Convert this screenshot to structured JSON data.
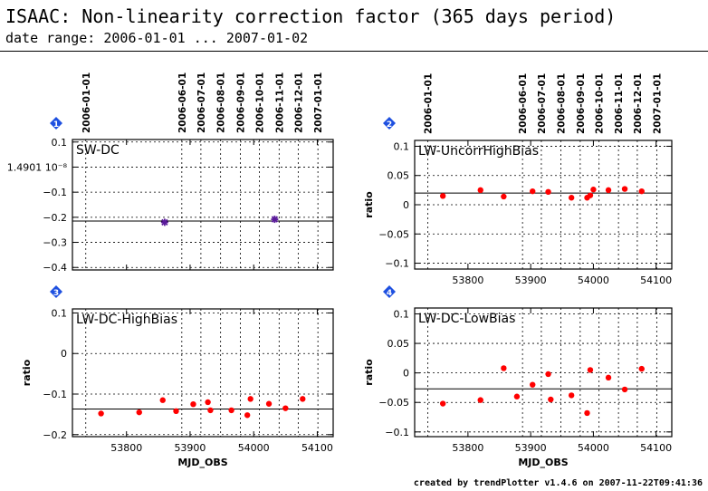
{
  "title": "ISAAC: Non-linearity correction factor (365 days period)",
  "subtitle": "date range: 2006-01-01 ... 2007-01-02",
  "footer": "created by trendPlotter v1.4.6 on 2007-11-22T09:41:36",
  "colors": {
    "points": "#ff0000",
    "star": "#5a1a9a",
    "badge": "#1e50e0",
    "line": "#000000"
  },
  "top_date_ticks": [
    {
      "label": "2006-01-01",
      "mjd": 53736
    },
    {
      "label": "2006-06-01",
      "mjd": 53887
    },
    {
      "label": "2006-07-01",
      "mjd": 53917
    },
    {
      "label": "2006-08-01",
      "mjd": 53948
    },
    {
      "label": "2006-09-01",
      "mjd": 53979
    },
    {
      "label": "2006-10-01",
      "mjd": 54009
    },
    {
      "label": "2006-11-01",
      "mjd": 54040
    },
    {
      "label": "2006-12-01",
      "mjd": 54070
    },
    {
      "label": "2007-01-01",
      "mjd": 54101
    }
  ],
  "chart_data": [
    {
      "type": "scatter",
      "panel": "1",
      "label": "SW-DC",
      "marker": "star",
      "xlabel": "",
      "ylabel": "",
      "xlim": [
        53715,
        54125
      ],
      "ylim": [
        -0.41,
        0.11
      ],
      "xticks": [
        53800,
        53900,
        54000,
        54100
      ],
      "xtick_labels": [],
      "yticks": [
        0.1,
        0,
        -0.1,
        -0.2,
        -0.3,
        -0.4
      ],
      "ytick_labels": [
        "0.1",
        "1.4901 10⁻⁸",
        "−0.1",
        "−0.2",
        "−0.3",
        "−0.4"
      ],
      "hline": -0.215,
      "points": [
        [
          53860,
          -0.22
        ],
        [
          54033,
          -0.208
        ]
      ]
    },
    {
      "type": "scatter",
      "panel": "2",
      "label": "LW-UncorrHighBias",
      "marker": "dot",
      "xlabel": "",
      "ylabel": "ratio",
      "xlim": [
        53715,
        54125
      ],
      "ylim": [
        -0.11,
        0.11
      ],
      "xticks": [
        53800,
        53900,
        54000,
        54100
      ],
      "xtick_labels": [
        "53800",
        "53900",
        "54000",
        "54100"
      ],
      "yticks": [
        0.1,
        0.05,
        0,
        -0.05,
        -0.1
      ],
      "ytick_labels": [
        "0.1",
        "0.05",
        "0",
        "−0.05",
        "−0.1"
      ],
      "hline": 0.02,
      "points": [
        [
          53760,
          0.015
        ],
        [
          53820,
          0.025
        ],
        [
          53857,
          0.014
        ],
        [
          53903,
          0.023
        ],
        [
          53928,
          0.022
        ],
        [
          53965,
          0.012
        ],
        [
          53990,
          0.012
        ],
        [
          53995,
          0.016
        ],
        [
          54000,
          0.026
        ],
        [
          54024,
          0.025
        ],
        [
          54050,
          0.027
        ],
        [
          54077,
          0.023
        ]
      ]
    },
    {
      "type": "scatter",
      "panel": "3",
      "label": "LW-DC-HighBias",
      "marker": "dot",
      "xlabel": "MJD_OBS",
      "ylabel": "ratio",
      "xlim": [
        53715,
        54125
      ],
      "ylim": [
        -0.205,
        0.11
      ],
      "xticks": [
        53800,
        53900,
        54000,
        54100
      ],
      "xtick_labels": [
        "53800",
        "53900",
        "54000",
        "54100"
      ],
      "yticks": [
        0.1,
        0,
        -0.1,
        -0.2
      ],
      "ytick_labels": [
        "0.1",
        "0",
        "−0.1",
        "−0.2"
      ],
      "hline": -0.137,
      "points": [
        [
          53760,
          -0.148
        ],
        [
          53820,
          -0.145
        ],
        [
          53857,
          -0.115
        ],
        [
          53878,
          -0.142
        ],
        [
          53905,
          -0.125
        ],
        [
          53928,
          -0.12
        ],
        [
          53932,
          -0.14
        ],
        [
          53965,
          -0.14
        ],
        [
          53990,
          -0.152
        ],
        [
          53995,
          -0.112
        ],
        [
          54024,
          -0.124
        ],
        [
          54050,
          -0.135
        ],
        [
          54077,
          -0.112
        ]
      ]
    },
    {
      "type": "scatter",
      "panel": "4",
      "label": "LW-DC-LowBias",
      "marker": "dot",
      "xlabel": "MJD_OBS",
      "ylabel": "ratio",
      "xlim": [
        53715,
        54125
      ],
      "ylim": [
        -0.108,
        0.11
      ],
      "xticks": [
        53800,
        53900,
        54000,
        54100
      ],
      "xtick_labels": [
        "53800",
        "53900",
        "54000",
        "54100"
      ],
      "yticks": [
        0.1,
        0.05,
        0,
        -0.05,
        -0.1
      ],
      "ytick_labels": [
        "0.1",
        "0.05",
        "0",
        "−0.05",
        "−0.1"
      ],
      "hline": -0.027,
      "points": [
        [
          53760,
          -0.052
        ],
        [
          53820,
          -0.046
        ],
        [
          53857,
          0.008
        ],
        [
          53878,
          -0.04
        ],
        [
          53903,
          -0.02
        ],
        [
          53928,
          -0.002
        ],
        [
          53932,
          -0.045
        ],
        [
          53965,
          -0.038
        ],
        [
          53990,
          -0.068
        ],
        [
          53995,
          0.005
        ],
        [
          54024,
          -0.008
        ],
        [
          54050,
          -0.028
        ],
        [
          54077,
          0.007
        ]
      ]
    }
  ]
}
